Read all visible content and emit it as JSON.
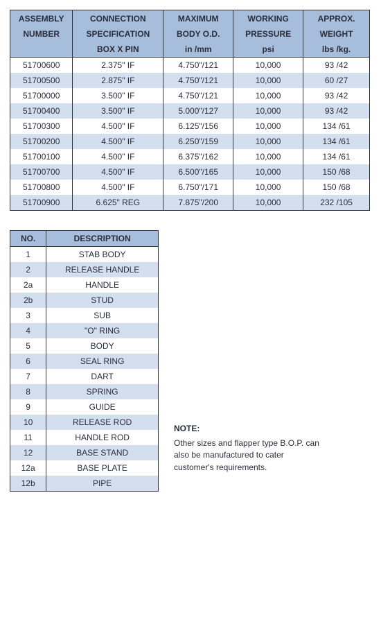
{
  "specs_table": {
    "columns": [
      [
        "ASSEMBLY",
        "NUMBER",
        ""
      ],
      [
        "CONNECTION",
        "SPECIFICATION",
        "BOX X PIN"
      ],
      [
        "MAXIMUM",
        "BODY O.D.",
        "in /mm"
      ],
      [
        "WORKING",
        "PRESSURE",
        "psi"
      ],
      [
        "APPROX.",
        "WEIGHT",
        "lbs /kg."
      ]
    ],
    "rows": [
      [
        "51700600",
        "2.375\" IF",
        "4.750\"/121",
        "10,000",
        "93 /42"
      ],
      [
        "51700500",
        "2.875\" IF",
        "4.750\"/121",
        "10,000",
        "60 /27"
      ],
      [
        "51700000",
        "3.500\" IF",
        "4.750\"/121",
        "10,000",
        "93 /42"
      ],
      [
        "51700400",
        "3.500\" IF",
        "5.000\"/127",
        "10,000",
        "93 /42"
      ],
      [
        "51700300",
        "4.500\" IF",
        "6.125\"/156",
        "10,000",
        "134 /61"
      ],
      [
        "51700200",
        "4.500\" IF",
        "6.250\"/159",
        "10,000",
        "134 /61"
      ],
      [
        "51700100",
        "4.500\" IF",
        "6.375\"/162",
        "10,000",
        "134 /61"
      ],
      [
        "51700700",
        "4.500\" IF",
        "6.500\"/165",
        "10,000",
        "150 /68"
      ],
      [
        "51700800",
        "4.500\" IF",
        "6.750\"/171",
        "10,000",
        "150 /68"
      ],
      [
        "51700900",
        "6.625\" REG",
        "7.875\"/200",
        "10,000",
        "232 /105"
      ]
    ],
    "header_bg": "#a7bddc",
    "row_alt_bg": "#d3deee"
  },
  "parts_table": {
    "columns": [
      "NO.",
      "DESCRIPTION"
    ],
    "rows": [
      [
        "1",
        "STAB BODY"
      ],
      [
        "2",
        "RELEASE HANDLE"
      ],
      [
        "2a",
        "HANDLE"
      ],
      [
        "2b",
        "STUD"
      ],
      [
        "3",
        "SUB"
      ],
      [
        "4",
        "\"O\" RING"
      ],
      [
        "5",
        "BODY"
      ],
      [
        "6",
        "SEAL RING"
      ],
      [
        "7",
        "DART"
      ],
      [
        "8",
        "SPRING"
      ],
      [
        "9",
        "GUIDE"
      ],
      [
        "10",
        "RELEASE ROD"
      ],
      [
        "11",
        "HANDLE ROD"
      ],
      [
        "12",
        "BASE STAND"
      ],
      [
        "12a",
        "BASE PLATE"
      ],
      [
        "12b",
        "PIPE"
      ]
    ],
    "header_bg": "#a7bddc",
    "row_alt_bg": "#d3deee"
  },
  "note": {
    "title": "NOTE:",
    "body": "Other sizes and flapper type B.O.P. can also be manufactured to cater customer's requirements."
  }
}
